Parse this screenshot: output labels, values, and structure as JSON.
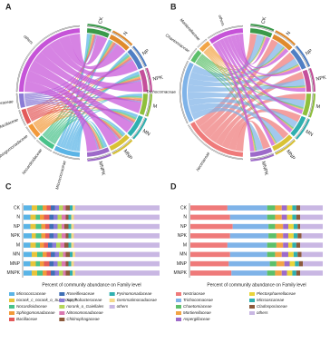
{
  "chart_data": [
    {
      "type": "chord",
      "panel": "A",
      "samples": [
        "CK",
        "N",
        "NP",
        "NPK",
        "M",
        "MN",
        "MNP",
        "MNPK"
      ],
      "sample_colors": [
        "#3a9a4a",
        "#e08a2c",
        "#4f7fc4",
        "#c44f9b",
        "#8fbf3c",
        "#2fb0b0",
        "#d9c235",
        "#9d6ac9"
      ],
      "families": [
        "Micrococcaceae",
        "Nocardioidaceae",
        "Sphingomonadaceae",
        "Bacillaceae",
        "Xanthobacteraceae",
        "others"
      ],
      "family_colors": [
        "#5ab4e6",
        "#49c28a",
        "#f29a3a",
        "#e35a5a",
        "#8b7bd6",
        "#c653d8"
      ],
      "matrix": [
        [
          6,
          5,
          5,
          6,
          5,
          6,
          5,
          6
        ],
        [
          4,
          3,
          4,
          4,
          3,
          4,
          3,
          4
        ],
        [
          3,
          3,
          3,
          3,
          3,
          3,
          3,
          3
        ],
        [
          3,
          4,
          3,
          3,
          3,
          3,
          4,
          3
        ],
        [
          3,
          3,
          3,
          3,
          3,
          3,
          3,
          3
        ],
        [
          20,
          20,
          20,
          20,
          20,
          20,
          20,
          20
        ]
      ]
    },
    {
      "type": "chord",
      "panel": "B",
      "samples": [
        "CK",
        "N",
        "NP",
        "NPK",
        "M",
        "MN",
        "MNP",
        "MNPK"
      ],
      "sample_colors": [
        "#3a9a4a",
        "#e08a2c",
        "#4f7fc4",
        "#c44f9b",
        "#8fbf3c",
        "#2fb0b0",
        "#d9c235",
        "#9d6ac9"
      ],
      "families": [
        "Nectriaceae",
        "Trichocomaceae",
        "Chaetomiaceae",
        "Mortierellaceae",
        "others"
      ],
      "family_colors": [
        "#ef7a7a",
        "#7fb3e8",
        "#5cbf6a",
        "#f2a445",
        "#c653d8"
      ],
      "matrix": [
        [
          28,
          30,
          32,
          30,
          28,
          30,
          29,
          31
        ],
        [
          30,
          28,
          27,
          29,
          30,
          28,
          31,
          27
        ],
        [
          6,
          6,
          5,
          6,
          7,
          6,
          5,
          6
        ],
        [
          5,
          5,
          6,
          5,
          5,
          5,
          6,
          5
        ],
        [
          17,
          17,
          17,
          16,
          17,
          16,
          15,
          17
        ]
      ]
    },
    {
      "type": "stacked_barh",
      "panel": "C",
      "x_label": "Percent of community abundance on Family level",
      "categories": [
        "CK",
        "N",
        "NP",
        "NPK",
        "M",
        "MN",
        "MNP",
        "MNPK"
      ],
      "xlim": [
        0,
        100
      ],
      "series": [
        {
          "name": "Micrococcaceae",
          "color": "#5ab4e6",
          "values": [
            6,
            5,
            5,
            6,
            5,
            6,
            5,
            6
          ]
        },
        {
          "name": "norank_c_norank_o_Subgroup_7",
          "color": "#e8c43a",
          "values": [
            4,
            4,
            4,
            3,
            4,
            4,
            4,
            4
          ]
        },
        {
          "name": "Nocardioidaceae",
          "color": "#49c28a",
          "values": [
            4,
            3,
            4,
            4,
            3,
            4,
            3,
            4
          ]
        },
        {
          "name": "Sphingomonadaceae",
          "color": "#f29a3a",
          "values": [
            3,
            3,
            3,
            3,
            3,
            3,
            3,
            3
          ]
        },
        {
          "name": "Bacillaceae",
          "color": "#e35a5a",
          "values": [
            3,
            4,
            3,
            3,
            3,
            3,
            4,
            3
          ]
        },
        {
          "name": "Roseiflexaceae",
          "color": "#3f6fb5",
          "values": [
            3,
            3,
            3,
            3,
            3,
            3,
            3,
            3
          ]
        },
        {
          "name": "Xanthobacteraceae",
          "color": "#8b7bd6",
          "values": [
            3,
            3,
            3,
            3,
            3,
            3,
            3,
            3
          ]
        },
        {
          "name": "norank_o_Gaiellales",
          "color": "#b5d65a",
          "values": [
            3,
            3,
            3,
            3,
            3,
            3,
            3,
            3
          ]
        },
        {
          "name": "Nitrosomonadaceae",
          "color": "#d978b0",
          "values": [
            2,
            3,
            2,
            3,
            3,
            2,
            3,
            2
          ]
        },
        {
          "name": "Chitinophagaceae",
          "color": "#8d5a3c",
          "values": [
            3,
            2,
            3,
            2,
            3,
            3,
            2,
            3
          ]
        },
        {
          "name": "Pyrinomonadaceae",
          "color": "#2fb0b0",
          "values": [
            2,
            2,
            2,
            2,
            2,
            2,
            2,
            2
          ]
        },
        {
          "name": "Gemmatimonadaceae",
          "color": "#f5d98a",
          "values": [
            2,
            2,
            2,
            2,
            2,
            2,
            2,
            2
          ]
        },
        {
          "name": "others",
          "color": "#c9b7e3",
          "values": [
            62,
            63,
            63,
            63,
            63,
            62,
            63,
            62
          ]
        }
      ]
    },
    {
      "type": "stacked_barh",
      "panel": "D",
      "x_label": "Percent of community abundance on Family level",
      "categories": [
        "CK",
        "N",
        "NP",
        "NPK",
        "M",
        "MN",
        "MNP",
        "MNPK"
      ],
      "xlim": [
        0,
        100
      ],
      "series": [
        {
          "name": "Nectriaceae",
          "color": "#ef7a7a",
          "values": [
            28,
            30,
            32,
            30,
            28,
            30,
            29,
            31
          ]
        },
        {
          "name": "Trichocomaceae",
          "color": "#7fb3e8",
          "values": [
            30,
            28,
            27,
            29,
            30,
            28,
            31,
            27
          ]
        },
        {
          "name": "Chaetomiaceae",
          "color": "#5cbf6a",
          "values": [
            6,
            6,
            5,
            6,
            7,
            6,
            5,
            6
          ]
        },
        {
          "name": "Mortierellaceae",
          "color": "#f2a445",
          "values": [
            5,
            5,
            6,
            5,
            5,
            5,
            6,
            5
          ]
        },
        {
          "name": "Aspergillaceae",
          "color": "#9d6ac9",
          "values": [
            4,
            4,
            4,
            4,
            4,
            5,
            4,
            4
          ]
        },
        {
          "name": "Plectosphaerellaceae",
          "color": "#e8d43a",
          "values": [
            4,
            4,
            4,
            4,
            3,
            4,
            4,
            4
          ]
        },
        {
          "name": "Microascaceae",
          "color": "#2fb0b0",
          "values": [
            3,
            3,
            3,
            3,
            3,
            3,
            3,
            3
          ]
        },
        {
          "name": "Cladosporiaceae",
          "color": "#8d5a3c",
          "values": [
            3,
            3,
            2,
            3,
            3,
            3,
            3,
            3
          ]
        },
        {
          "name": "others",
          "color": "#c9b7e3",
          "values": [
            17,
            17,
            17,
            16,
            17,
            16,
            15,
            17
          ]
        }
      ]
    }
  ]
}
